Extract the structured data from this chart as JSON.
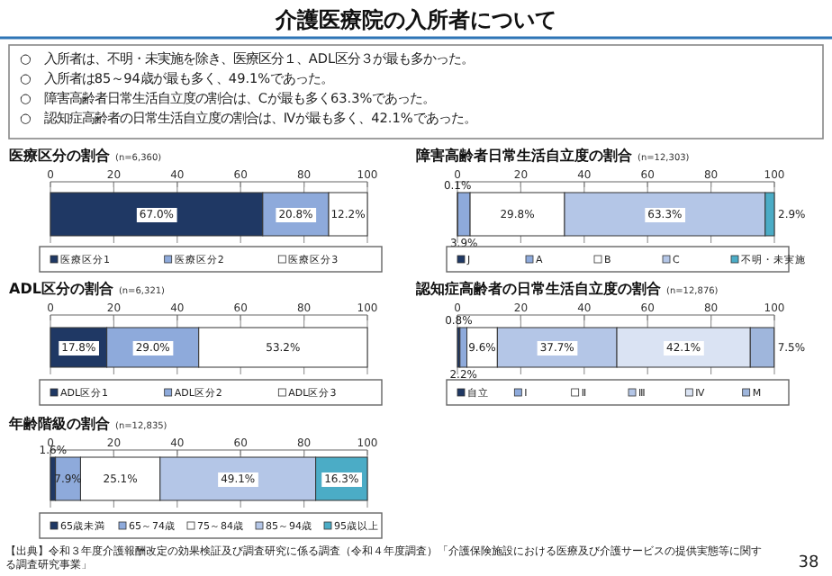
{
  "chart_data": [
    {
      "type": "other",
      "title": "介護医療院の入所者について",
      "annotations": [
        "○　入所者は、不明・未実施を除き、医療区分１、ADL区分３が最も多かった。",
        "○　入所者は85～94歳が最も多く、49.1%であった。",
        "○　障害高齢者日常生活自立度の割合は、Cが最も多く63.3%であった。",
        "○　認知症高齢者の日常生活自立度の割合は、Ⅳが最も多く、42.1%であった。"
      ]
    },
    {
      "type": "bar",
      "title": "医療区分の割合",
      "subtitle": "(n=6,360)",
      "orientation": "horizontal",
      "stacked": true,
      "categories": [
        null
      ],
      "xlim": [
        0,
        100
      ],
      "xticks": [
        0,
        20,
        40,
        60,
        80,
        100
      ],
      "grid": "x",
      "legend": "bottom",
      "series": [
        {
          "name": "医療区分1",
          "color": "#1f3864",
          "values": [
            67.0
          ],
          "value_labels": [
            "67.0%"
          ]
        },
        {
          "name": "医療区分2",
          "color": "#8eaadb",
          "values": [
            20.8
          ],
          "value_labels": [
            "20.8%"
          ]
        },
        {
          "name": "医療区分3",
          "color": "#ffffff",
          "values": [
            12.2
          ],
          "value_labels": [
            "12.2%"
          ]
        }
      ]
    },
    {
      "type": "bar",
      "title": "障害高齢者日常生活自立度の割合",
      "subtitle": "(n=12,303)",
      "orientation": "horizontal",
      "stacked": true,
      "categories": [
        null
      ],
      "xlim": [
        0,
        100
      ],
      "xticks": [
        0,
        20,
        40,
        60,
        80,
        100
      ],
      "grid": "x",
      "legend": "bottom",
      "series": [
        {
          "name": "J",
          "color": "#1f3864",
          "values": [
            0.1
          ],
          "value_labels": [
            "0.1%"
          ]
        },
        {
          "name": "A",
          "color": "#8eaadb",
          "values": [
            3.9
          ],
          "value_labels": [
            "3.9%"
          ]
        },
        {
          "name": "B",
          "color": "#ffffff",
          "values": [
            29.8
          ],
          "value_labels": [
            "29.8%"
          ]
        },
        {
          "name": "C",
          "color": "#b4c6e7",
          "values": [
            63.3
          ],
          "value_labels": [
            "63.3%"
          ]
        },
        {
          "name": "不明・未実施",
          "color": "#4bacc6",
          "values": [
            2.9
          ],
          "value_labels": [
            "2.9%"
          ]
        }
      ]
    },
    {
      "type": "bar",
      "title": "ADL区分の割合",
      "subtitle": "(n=6,321)",
      "orientation": "horizontal",
      "stacked": true,
      "categories": [
        null
      ],
      "xlim": [
        0,
        100
      ],
      "xticks": [
        0,
        20,
        40,
        60,
        80,
        100
      ],
      "grid": "x",
      "legend": "bottom",
      "series": [
        {
          "name": "ADL区分1",
          "color": "#1f3864",
          "values": [
            17.8
          ],
          "value_labels": [
            "17.8%"
          ]
        },
        {
          "name": "ADL区分2",
          "color": "#8eaadb",
          "values": [
            29.0
          ],
          "value_labels": [
            "29.0%"
          ]
        },
        {
          "name": "ADL区分3",
          "color": "#ffffff",
          "values": [
            53.2
          ],
          "value_labels": [
            "53.2%"
          ]
        }
      ]
    },
    {
      "type": "bar",
      "title": "認知症高齢者の日常生活自立度の割合",
      "subtitle": "(n=12,876)",
      "orientation": "horizontal",
      "stacked": true,
      "categories": [
        null
      ],
      "xlim": [
        0,
        100
      ],
      "xticks": [
        0,
        20,
        40,
        60,
        80,
        100
      ],
      "grid": "x",
      "legend": "bottom",
      "series": [
        {
          "name": "自立",
          "color": "#1f3864",
          "values": [
            0.8
          ],
          "value_labels": [
            "0.8%"
          ]
        },
        {
          "name": "Ⅰ",
          "color": "#8eaadb",
          "values": [
            2.2
          ],
          "value_labels": [
            "2.2%"
          ]
        },
        {
          "name": "Ⅱ",
          "color": "#ffffff",
          "values": [
            9.6
          ],
          "value_labels": [
            "9.6%"
          ]
        },
        {
          "name": "Ⅲ",
          "color": "#b4c6e7",
          "values": [
            37.7
          ],
          "value_labels": [
            "37.7%"
          ]
        },
        {
          "name": "Ⅳ",
          "color": "#dae3f3",
          "values": [
            42.1
          ],
          "value_labels": [
            "42.1%"
          ]
        },
        {
          "name": "M",
          "color": "#9fb6dc",
          "values": [
            7.5
          ],
          "value_labels": [
            "7.5%"
          ]
        }
      ]
    },
    {
      "type": "bar",
      "title": "年齢階級の割合",
      "subtitle": "(n=12,835)",
      "orientation": "horizontal",
      "stacked": true,
      "categories": [
        null
      ],
      "xlim": [
        0,
        100
      ],
      "xticks": [
        0,
        20,
        40,
        60,
        80,
        100
      ],
      "grid": "x",
      "legend": "bottom",
      "series": [
        {
          "name": "65歳未満",
          "color": "#1f3864",
          "values": [
            1.6
          ],
          "value_labels": [
            "1.6%"
          ]
        },
        {
          "name": "65～74歳",
          "color": "#8eaadb",
          "values": [
            7.9
          ],
          "value_labels": [
            "7.9%"
          ]
        },
        {
          "name": "75～84歳",
          "color": "#ffffff",
          "values": [
            25.1
          ],
          "value_labels": [
            "25.1%"
          ]
        },
        {
          "name": "85～94歳",
          "color": "#b4c6e7",
          "values": [
            49.1
          ],
          "value_labels": [
            "49.1%"
          ]
        },
        {
          "name": "95歳以上",
          "color": "#4bacc6",
          "values": [
            16.3
          ],
          "value_labels": [
            "16.3%"
          ]
        }
      ],
      "annotations": [
        "【出典】令和３年度介護報酬改定の効果検証及び調査研究に係る調査（令和４年度調査）「介護保険施設における医療及び介護サービスの提供実態等に関する調査研究事業」",
        "38"
      ]
    }
  ]
}
